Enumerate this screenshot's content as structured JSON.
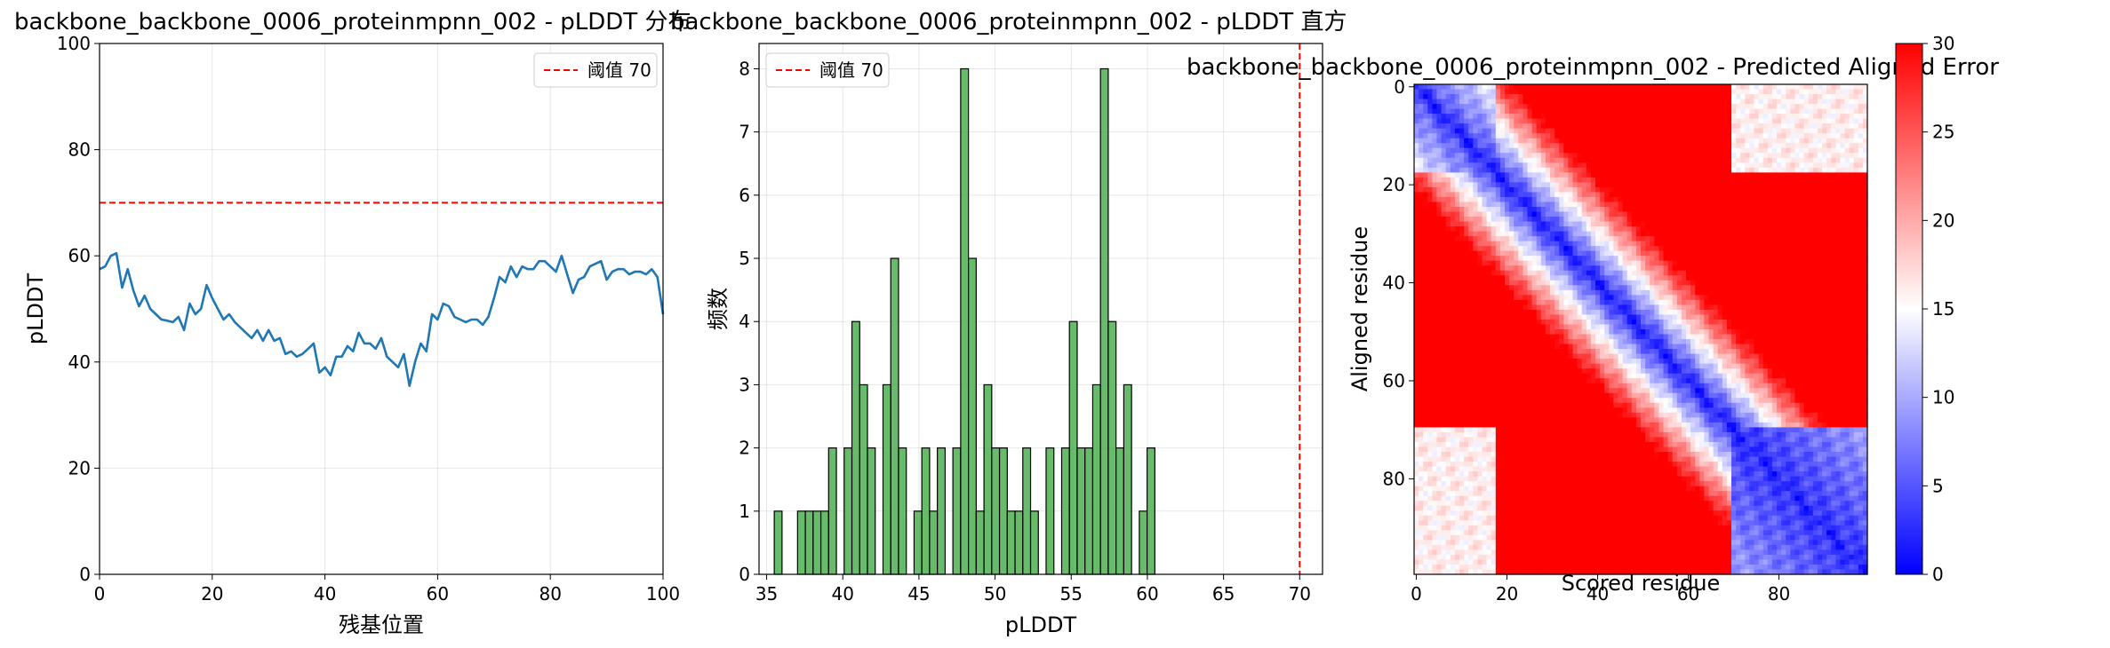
{
  "chart_data": [
    {
      "type": "line",
      "title": "backbone_backbone_0006_proteinmpnn_002 - pLDDT 分布",
      "xlabel": "残基位置",
      "ylabel": "pLDDT",
      "xlim": [
        0,
        100
      ],
      "ylim": [
        0,
        100
      ],
      "xticks": [
        "0",
        "20",
        "40",
        "60",
        "80",
        "100"
      ],
      "yticks": [
        "0",
        "20",
        "40",
        "60",
        "80",
        "100"
      ],
      "grid": true,
      "legend_position": "top-right",
      "threshold": {
        "label": "阈值 70",
        "value": 70,
        "color": "#ff0000"
      },
      "series": [
        {
          "color": "#1f77b4",
          "x": [
            0,
            1,
            2,
            3,
            4,
            5,
            6,
            7,
            8,
            9,
            10,
            11,
            12,
            13,
            14,
            15,
            16,
            17,
            18,
            19,
            20,
            21,
            22,
            23,
            24,
            25,
            26,
            27,
            28,
            29,
            30,
            31,
            32,
            33,
            34,
            35,
            36,
            37,
            38,
            39,
            40,
            41,
            42,
            43,
            44,
            45,
            46,
            47,
            48,
            49,
            50,
            51,
            52,
            53,
            54,
            55,
            56,
            57,
            58,
            59,
            60,
            61,
            62,
            63,
            64,
            65,
            66,
            67,
            68,
            69,
            70,
            71,
            72,
            73,
            74,
            75,
            76,
            77,
            78,
            79,
            80,
            81,
            82,
            83,
            84,
            85,
            86,
            87,
            88,
            89,
            90,
            91,
            92,
            93,
            94,
            95,
            96,
            97,
            98,
            99,
            100
          ],
          "values": [
            57.5,
            58.0,
            60.0,
            60.5,
            54.0,
            57.5,
            53.5,
            50.5,
            52.5,
            50.0,
            49.0,
            48.0,
            47.8,
            47.5,
            48.5,
            46.0,
            51.0,
            49.0,
            50.0,
            54.5,
            52.0,
            50.0,
            48.0,
            49.0,
            47.5,
            46.5,
            45.5,
            44.5,
            46.0,
            44.0,
            46.0,
            44.0,
            44.5,
            41.5,
            42.0,
            41.0,
            41.5,
            42.5,
            43.5,
            38.0,
            39.0,
            37.5,
            41.0,
            41.0,
            43.0,
            42.0,
            45.5,
            43.5,
            43.5,
            42.5,
            44.5,
            41.0,
            40.0,
            39.0,
            41.5,
            35.5,
            40.0,
            43.5,
            42.0,
            49.0,
            48.0,
            51.0,
            50.5,
            48.5,
            48.0,
            47.5,
            48.0,
            48.0,
            47.0,
            48.5,
            52.0,
            56.0,
            55.0,
            58.0,
            56.0,
            58.0,
            57.5,
            57.5,
            59.0,
            59.0,
            58.0,
            57.0,
            60.0,
            56.5,
            53.0,
            55.5,
            56.0,
            58.0,
            58.5,
            59.0,
            55.5,
            57.0,
            57.5,
            57.5,
            56.5,
            57.0,
            57.0,
            56.5,
            57.5,
            56.0,
            49.0
          ]
        }
      ]
    },
    {
      "type": "bar",
      "title": "backbone_backbone_0006_proteinmpnn_002 - pLDDT 直方",
      "xlabel": "pLDDT",
      "ylabel": "频数",
      "xlim": [
        34.5,
        71.5
      ],
      "ylim": [
        0,
        8.4
      ],
      "xticks": [
        "35",
        "40",
        "45",
        "50",
        "55",
        "60",
        "65",
        "70"
      ],
      "yticks": [
        "0",
        "1",
        "2",
        "3",
        "4",
        "5",
        "6",
        "7",
        "8"
      ],
      "grid": true,
      "legend_position": "top-left",
      "threshold": {
        "label": "阈值 70",
        "value": 70,
        "color": "#ff0000"
      },
      "bar_color": "#4caf50",
      "bin_width": 0.51,
      "bin_starts": [
        35.5,
        36.01,
        36.52,
        37.03,
        37.54,
        38.05,
        38.56,
        39.07,
        39.58,
        40.09,
        40.6,
        41.11,
        41.62,
        42.13,
        42.64,
        43.15,
        43.66,
        44.17,
        44.68,
        45.19,
        45.7,
        46.21,
        46.72,
        47.23,
        47.74,
        48.25,
        48.76,
        49.27,
        49.78,
        50.29,
        50.8,
        51.31,
        51.82,
        52.33,
        52.84,
        53.35,
        53.86,
        54.37,
        54.88,
        55.39,
        55.9,
        56.41,
        56.92,
        57.43,
        57.94,
        58.45,
        58.96,
        59.47,
        59.98,
        60.49
      ],
      "values": [
        1,
        0,
        0,
        1,
        1,
        1,
        1,
        2,
        0,
        2,
        4,
        3,
        2,
        0,
        3,
        5,
        2,
        0,
        1,
        2,
        1,
        2,
        0,
        2,
        8,
        5,
        1,
        3,
        2,
        2,
        1,
        1,
        2,
        1,
        0,
        2,
        0,
        2,
        4,
        2,
        2,
        3,
        8,
        4,
        2,
        3,
        0,
        1,
        2,
        0
      ]
    },
    {
      "type": "heatmap",
      "title": "backbone_backbone_0006_proteinmpnn_002 - Predicted Aligned Error",
      "xlabel": "Scored residue",
      "ylabel": "Aligned residue",
      "size": 100,
      "xlim": [
        -0.5,
        99.5
      ],
      "ylim": [
        99.5,
        -0.5
      ],
      "xticks": [
        "0",
        "20",
        "40",
        "60",
        "80"
      ],
      "yticks": [
        "0",
        "20",
        "40",
        "60",
        "80"
      ],
      "colormap": "bwr",
      "vmin": 0,
      "vmax": 30,
      "colorbar_ticks": [
        "0",
        "5",
        "10",
        "15",
        "20",
        "25",
        "30"
      ],
      "description_free": true
    }
  ]
}
